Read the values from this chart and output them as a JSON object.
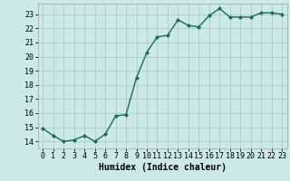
{
  "x": [
    0,
    1,
    2,
    3,
    4,
    5,
    6,
    7,
    8,
    9,
    10,
    11,
    12,
    13,
    14,
    15,
    16,
    17,
    18,
    19,
    20,
    21,
    22,
    23
  ],
  "y": [
    14.9,
    14.4,
    14.0,
    14.1,
    14.4,
    14.0,
    14.5,
    15.8,
    15.9,
    18.5,
    20.3,
    21.4,
    21.5,
    22.6,
    22.2,
    22.1,
    22.9,
    23.4,
    22.8,
    22.8,
    22.8,
    23.1,
    23.1,
    23.0
  ],
  "xlabel": "Humidex (Indice chaleur)",
  "xlim": [
    -0.5,
    23.5
  ],
  "ylim": [
    13.5,
    23.75
  ],
  "yticks": [
    14,
    15,
    16,
    17,
    18,
    19,
    20,
    21,
    22,
    23
  ],
  "xticks": [
    0,
    1,
    2,
    3,
    4,
    5,
    6,
    7,
    8,
    9,
    10,
    11,
    12,
    13,
    14,
    15,
    16,
    17,
    18,
    19,
    20,
    21,
    22,
    23
  ],
  "xtick_labels": [
    "0",
    "1",
    "2",
    "3",
    "4",
    "5",
    "6",
    "7",
    "8",
    "9",
    "10",
    "11",
    "12",
    "13",
    "14",
    "15",
    "16",
    "17",
    "18",
    "19",
    "20",
    "21",
    "22",
    "23"
  ],
  "line_color": "#1a6b5a",
  "marker": "D",
  "marker_size": 2.0,
  "line_width": 1.0,
  "bg_color": "#cce8e8",
  "grid_color": "#aacccc",
  "label_fontsize": 7.0,
  "tick_fontsize": 6.0
}
